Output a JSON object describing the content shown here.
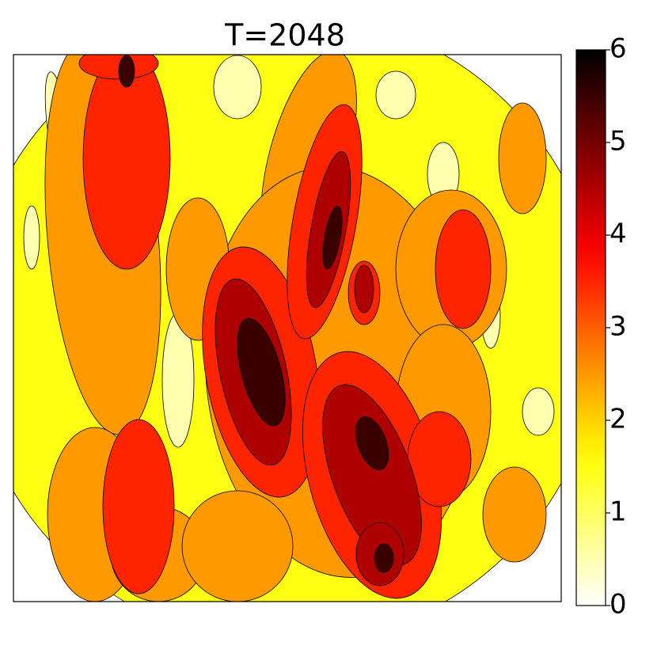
{
  "chart_data": {
    "type": "contour",
    "title": "T=2048",
    "cmap": "hot_r",
    "clim": [
      0,
      6
    ],
    "cticks": [
      0,
      1,
      2,
      3,
      4,
      5,
      6
    ]
  }
}
